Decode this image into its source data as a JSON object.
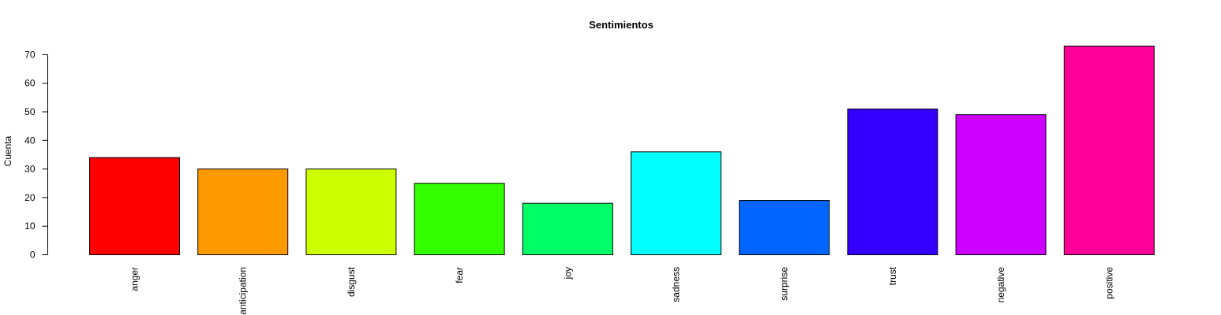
{
  "chart_data": {
    "type": "bar",
    "title": "Sentimientos",
    "xlabel": "",
    "ylabel": "Cuenta",
    "ylim": [
      0,
      73
    ],
    "yticks": [
      0,
      10,
      20,
      30,
      40,
      50,
      60,
      70
    ],
    "categories": [
      "anger",
      "anticipation",
      "disgust",
      "fear",
      "joy",
      "sadness",
      "surprise",
      "trust",
      "negative",
      "positive"
    ],
    "values": [
      34,
      30,
      30,
      25,
      18,
      36,
      19,
      51,
      49,
      73
    ],
    "colors": [
      "#FF0000",
      "#FF9900",
      "#CCFF00",
      "#33FF00",
      "#00FF66",
      "#00FFFF",
      "#0066FF",
      "#3300FF",
      "#CC00FF",
      "#FF0099"
    ],
    "grid": false,
    "legend": "none"
  }
}
